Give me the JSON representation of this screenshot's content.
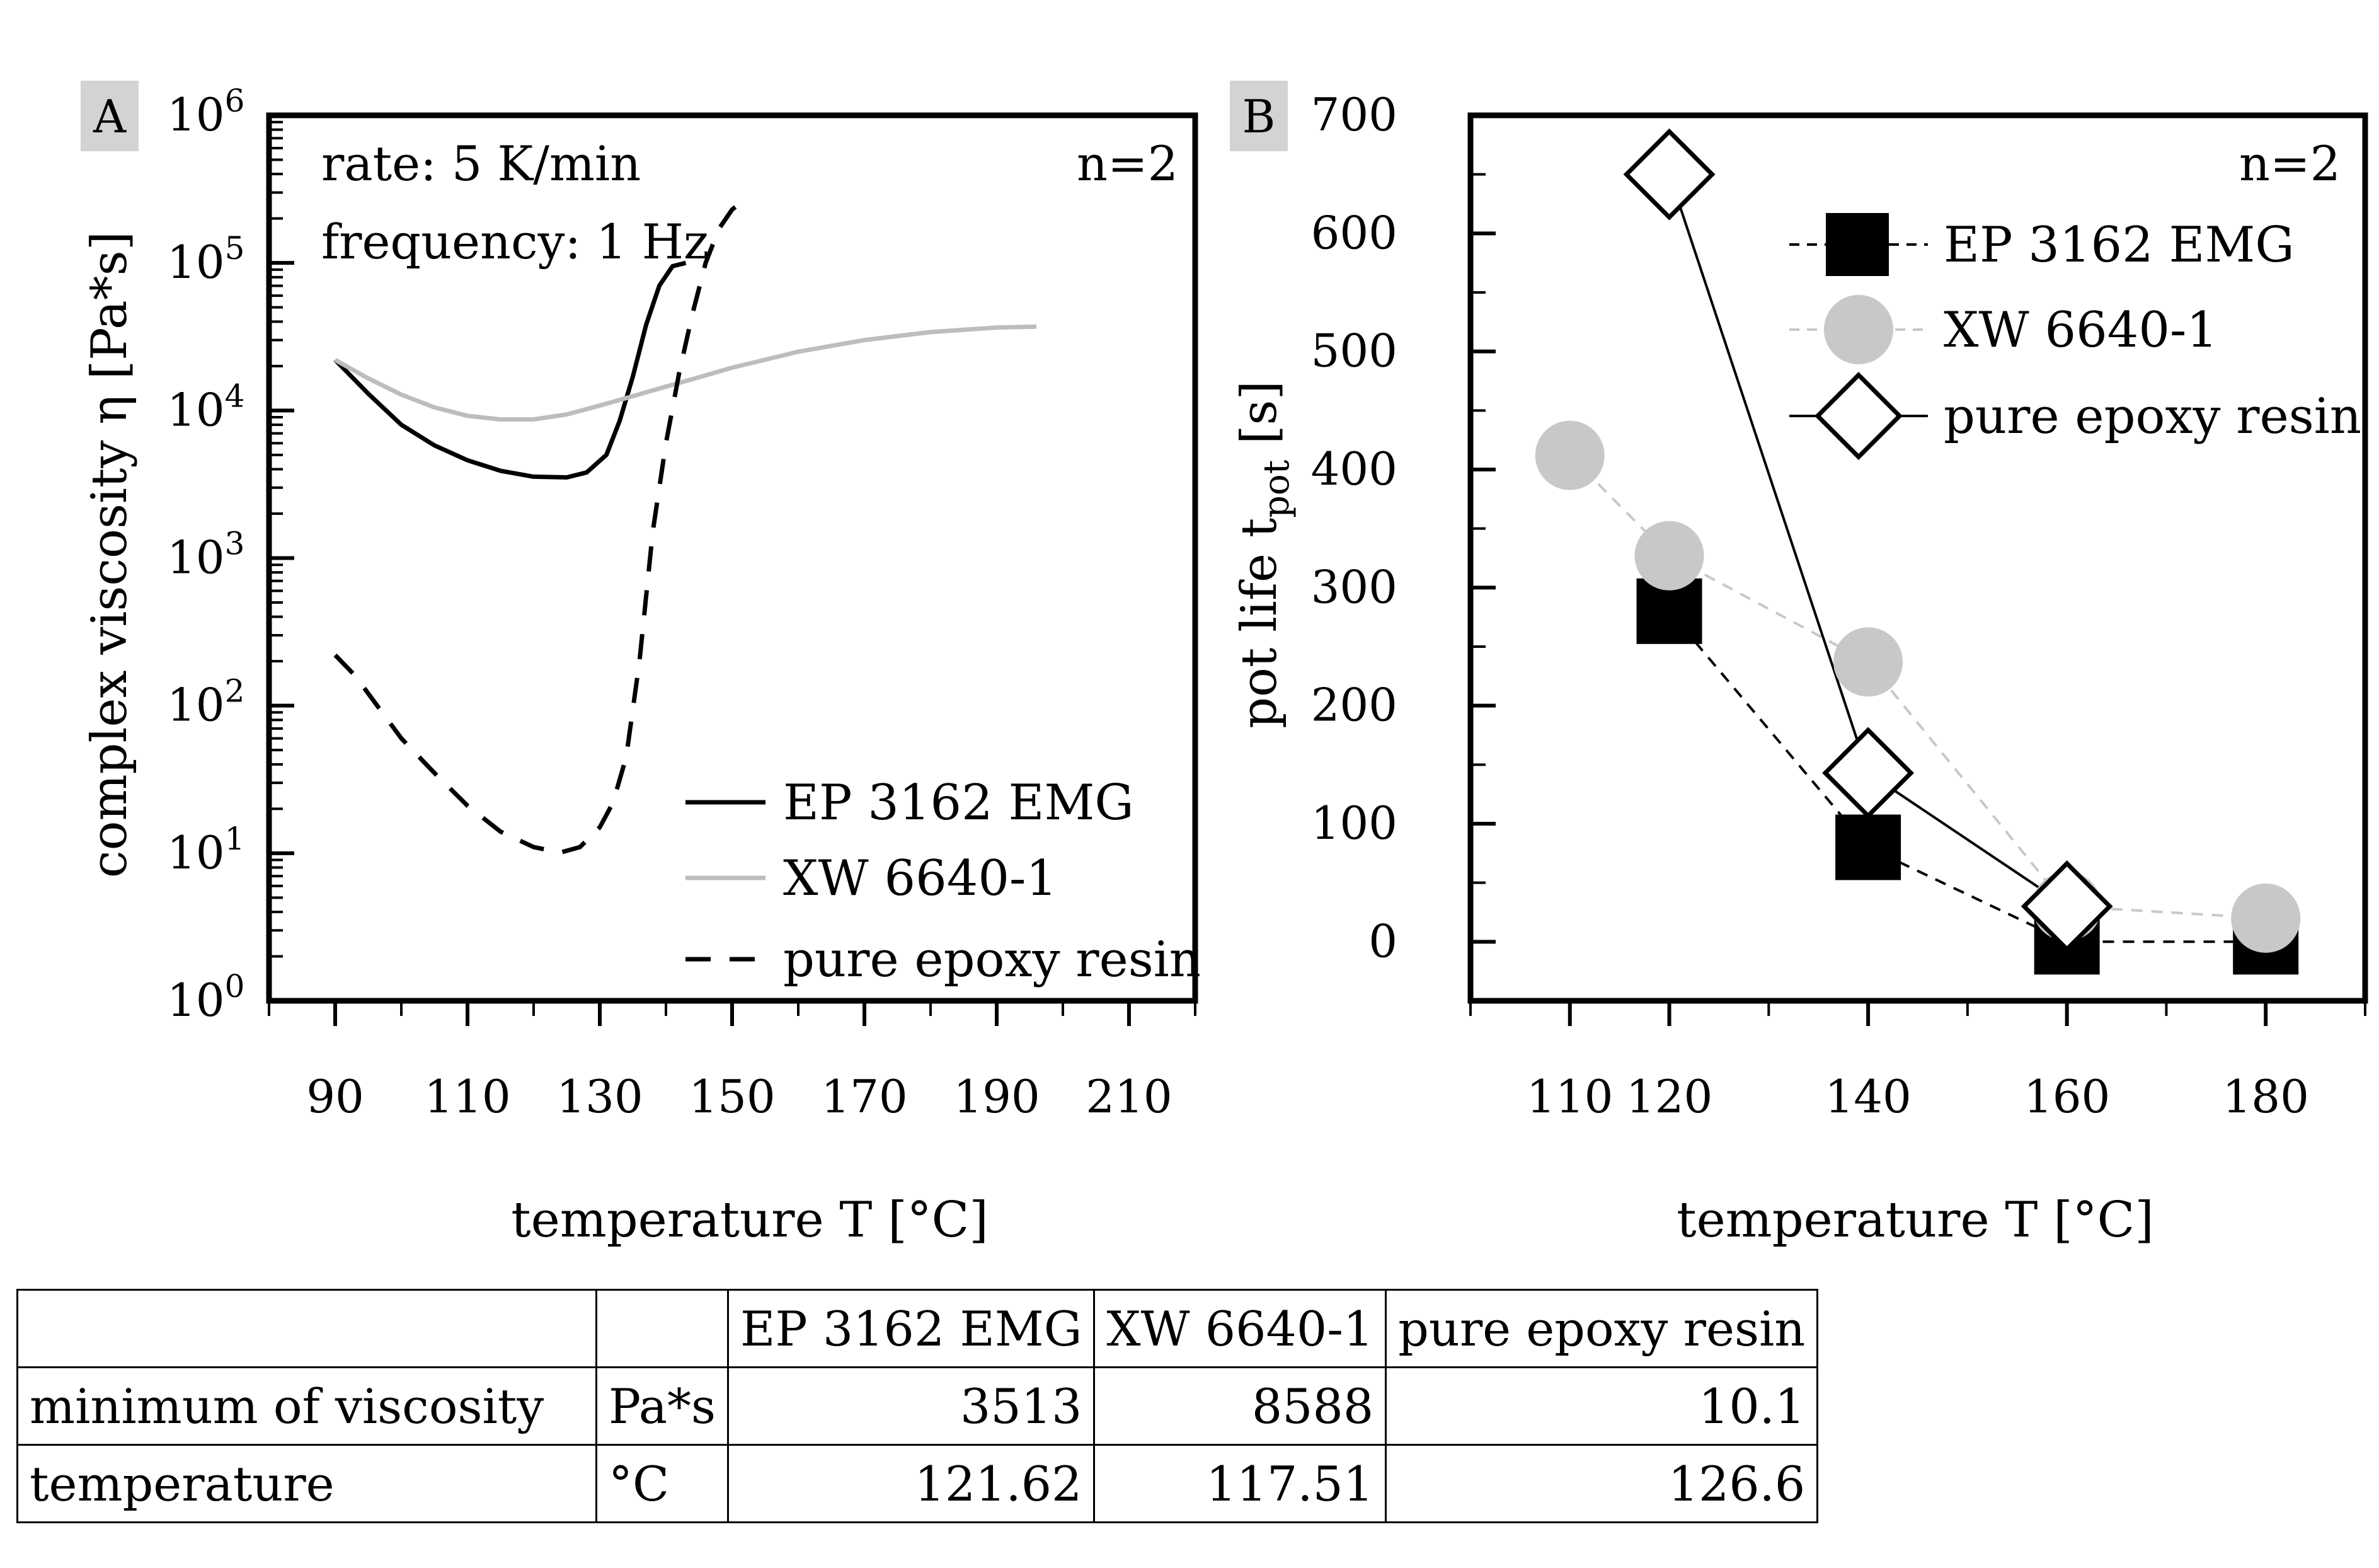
{
  "chart_data": [
    {
      "panel": "A",
      "type": "line",
      "y_scale": "log",
      "xlabel": "temperature T [°C]",
      "ylabel": "complex viscosity η [Pa*s]",
      "xlim": [
        80,
        220
      ],
      "ylim": [
        1,
        1000000
      ],
      "x_ticks": [
        90,
        110,
        130,
        150,
        170,
        190,
        210
      ],
      "y_ticks": [
        {
          "base": "10",
          "exp": "0"
        },
        {
          "base": "10",
          "exp": "1"
        },
        {
          "base": "10",
          "exp": "2"
        },
        {
          "base": "10",
          "exp": "3"
        },
        {
          "base": "10",
          "exp": "4"
        },
        {
          "base": "10",
          "exp": "5"
        },
        {
          "base": "10",
          "exp": "6"
        }
      ],
      "annotations": [
        "rate: 5 K/min",
        "frequency: 1 Hz",
        "n=2"
      ],
      "legend_position": "bottom-right",
      "series": [
        {
          "name": "EP 3162 EMG",
          "color": "#000000",
          "dash": "solid",
          "x": [
            90,
            95,
            100,
            105,
            110,
            115,
            120,
            125,
            128,
            131,
            133,
            135,
            137,
            139,
            141,
            143
          ],
          "y": [
            22000,
            13000,
            8000,
            5800,
            4600,
            3900,
            3560,
            3520,
            3800,
            5000,
            8500,
            17000,
            38000,
            70000,
            95000,
            100000
          ]
        },
        {
          "name": "XW 6640-1",
          "color": "#bdbdbd",
          "dash": "solid",
          "x": [
            90,
            95,
            100,
            105,
            110,
            115,
            120,
            125,
            130,
            135,
            140,
            145,
            150,
            160,
            170,
            180,
            190,
            196
          ],
          "y": [
            22000,
            16500,
            12800,
            10500,
            9200,
            8700,
            8700,
            9400,
            10800,
            12500,
            14500,
            16800,
            19500,
            25000,
            30000,
            34000,
            36500,
            37000
          ]
        },
        {
          "name": "pure epoxy resin",
          "color": "#000000",
          "dash": "dashed",
          "x": [
            90,
            93,
            96,
            100,
            105,
            110,
            115,
            120,
            124,
            127,
            130,
            132,
            134,
            136,
            138,
            140,
            142,
            144,
            146,
            148,
            150,
            152
          ],
          "y": [
            220,
            160,
            105,
            60,
            35,
            21,
            14,
            11,
            10.1,
            11,
            15,
            22,
            45,
            200,
            1500,
            6000,
            18000,
            45000,
            100000,
            170000,
            230000,
            270000
          ]
        }
      ]
    },
    {
      "panel": "B",
      "type": "scatter",
      "xlabel": "temperature T [°C]",
      "ylabel_main": "pot life t",
      "ylabel_sub": "pot",
      "ylabel_unit": " [s]",
      "xlim": [
        100,
        190
      ],
      "ylim": [
        -50,
        700
      ],
      "x_ticks": [
        110,
        120,
        140,
        160,
        180
      ],
      "y_ticks": [
        0,
        100,
        200,
        300,
        400,
        500,
        600,
        700
      ],
      "annotations": [
        "n=2"
      ],
      "legend_position": "top-right",
      "series": [
        {
          "name": "EP 3162 EMG",
          "marker": "square",
          "color": "#000000",
          "line": "dashed-black",
          "x": [
            120,
            140,
            160,
            180
          ],
          "y": [
            280,
            80,
            0,
            0
          ]
        },
        {
          "name": "XW 6640-1",
          "marker": "circle",
          "color": "#c8c8c8",
          "line": "dashed-grey",
          "x": [
            110,
            120,
            140,
            160,
            180
          ],
          "y": [
            412,
            327,
            237,
            30,
            20
          ]
        },
        {
          "name": "pure epoxy resin",
          "marker": "diamond",
          "color": "#ffffff",
          "line": "solid-black",
          "x": [
            120,
            140,
            160
          ],
          "y": [
            650,
            143,
            30
          ]
        }
      ]
    }
  ],
  "table": {
    "header": [
      "",
      "",
      "EP 3162 EMG",
      "XW 6640-1",
      "pure epoxy resin"
    ],
    "rows": [
      [
        "minimum of viscosity",
        "Pa*s",
        "3513",
        "8588",
        "10.1"
      ],
      [
        "temperature",
        "°C",
        "121.62",
        "117.51",
        "126.6"
      ]
    ]
  }
}
